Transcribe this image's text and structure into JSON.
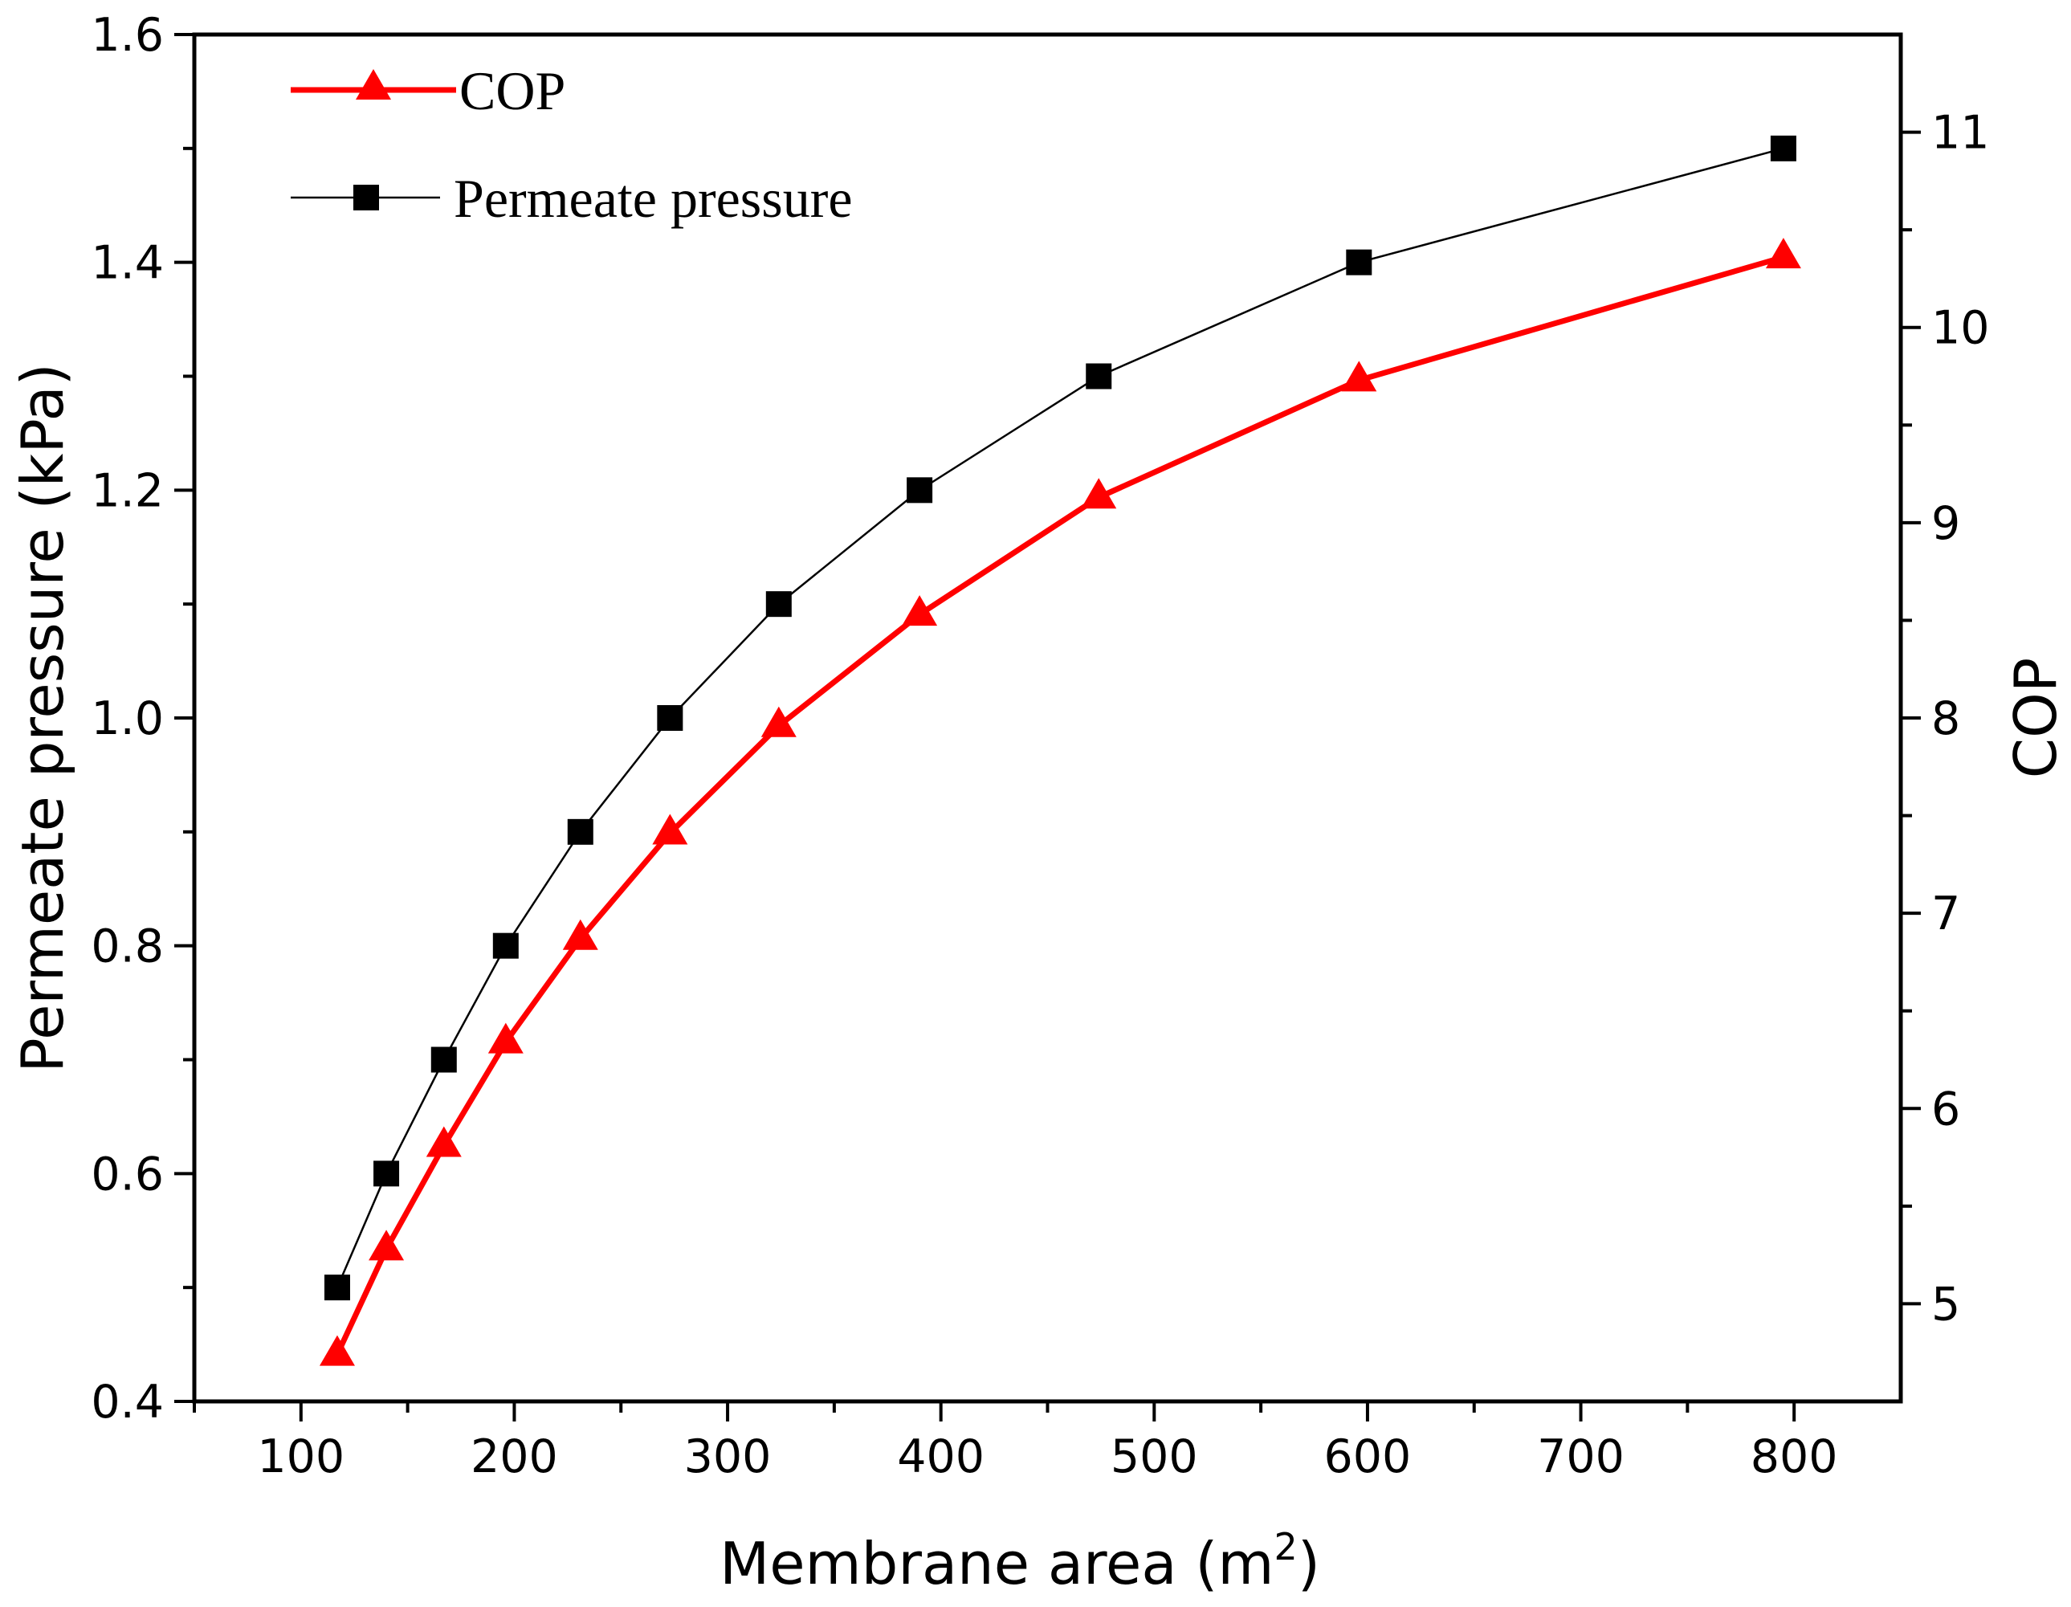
{
  "chart_data": {
    "type": "line",
    "xlabel": "Membrane area (m",
    "xlabel_sup": "2",
    "xlabel_close": ")",
    "ylabel_left": "Permeate pressure (kPa)",
    "ylabel_right": "COP",
    "xlim": [
      50,
      850
    ],
    "ylim_left": [
      0.4,
      1.6
    ],
    "ylim_right": [
      4.5,
      11.5
    ],
    "x_ticks": [
      {
        "value": 100,
        "label": "100"
      },
      {
        "value": 200,
        "label": "200"
      },
      {
        "value": 300,
        "label": "300"
      },
      {
        "value": 400,
        "label": "400"
      },
      {
        "value": 500,
        "label": "500"
      },
      {
        "value": 600,
        "label": "600"
      },
      {
        "value": 700,
        "label": "700"
      },
      {
        "value": 800,
        "label": "800"
      }
    ],
    "y_left_ticks": [
      {
        "value": 0.4,
        "label": "0.4"
      },
      {
        "value": 0.6,
        "label": "0.6"
      },
      {
        "value": 0.8,
        "label": "0.8"
      },
      {
        "value": 1.0,
        "label": "1.0"
      },
      {
        "value": 1.2,
        "label": "1.2"
      },
      {
        "value": 1.4,
        "label": "1.4"
      },
      {
        "value": 1.6,
        "label": "1.6"
      }
    ],
    "y_right_ticks": [
      {
        "value": 5,
        "label": "5"
      },
      {
        "value": 6,
        "label": "6"
      },
      {
        "value": 7,
        "label": "7"
      },
      {
        "value": 8,
        "label": "8"
      },
      {
        "value": 9,
        "label": "9"
      },
      {
        "value": 10,
        "label": "10"
      },
      {
        "value": 11,
        "label": "11"
      }
    ],
    "grid": false,
    "legend_position": "top-left",
    "series": [
      {
        "name": "COP",
        "axis": "right",
        "color": "#ff0000",
        "marker": "triangle",
        "x": [
          117,
          140,
          167,
          196,
          231,
          273,
          324,
          390,
          474,
          596,
          795
        ],
        "y": [
          4.74,
          5.28,
          5.81,
          6.34,
          6.87,
          7.41,
          7.96,
          8.53,
          9.13,
          9.73,
          10.36
        ]
      },
      {
        "name": "Permeate pressure",
        "axis": "left",
        "color": "#000000",
        "marker": "square",
        "x": [
          117,
          140,
          167,
          196,
          231,
          273,
          324,
          390,
          474,
          596,
          795
        ],
        "y": [
          0.5,
          0.6,
          0.7,
          0.8,
          0.9,
          1.0,
          1.1,
          1.2,
          1.3,
          1.4,
          1.5
        ]
      }
    ]
  }
}
